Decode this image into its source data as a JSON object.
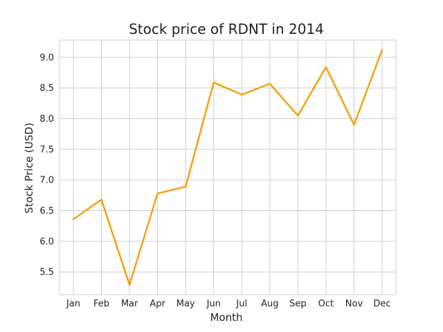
{
  "chart_data": {
    "type": "line",
    "title": "Stock price of RDNT in 2014",
    "xlabel": "Month",
    "ylabel": "Stock Price (USD)",
    "categories": [
      "Jan",
      "Feb",
      "Mar",
      "Apr",
      "May",
      "Jun",
      "Jul",
      "Aug",
      "Sep",
      "Oct",
      "Nov",
      "Dec"
    ],
    "series": [
      {
        "values": [
          6.36,
          6.68,
          5.29,
          6.78,
          6.89,
          8.59,
          8.39,
          8.57,
          8.05,
          8.84,
          7.9,
          9.12
        ],
        "color": "#f5a00f"
      }
    ],
    "ylim": [
      5.13,
      9.28
    ],
    "yticks": [
      5.5,
      6.0,
      6.5,
      7.0,
      7.5,
      8.0,
      8.5,
      9.0
    ],
    "grid": true,
    "legend": "none"
  }
}
